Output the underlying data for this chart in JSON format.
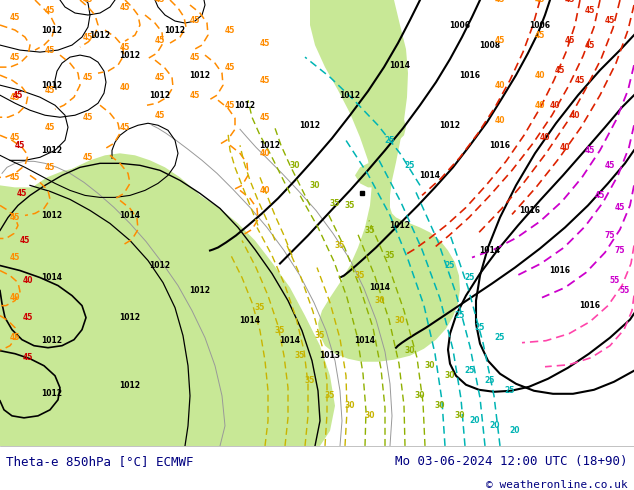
{
  "title_left": "Theta-e 850hPa [°C] ECMWF",
  "title_right": "Mo 03-06-2024 12:00 UTC (18+90)",
  "copyright": "© weatheronline.co.uk",
  "bg_color": "#ffffff",
  "land_green": "#c8e896",
  "land_light_green": "#d8f0a0",
  "sea_color": "#e8e8e8",
  "sea_color2": "#d8d8d8",
  "fig_width": 6.34,
  "fig_height": 4.9,
  "dpi": 100,
  "title_color": "#000080",
  "copyright_color": "#000080",
  "label_fontsize": 9,
  "copyright_fontsize": 8
}
